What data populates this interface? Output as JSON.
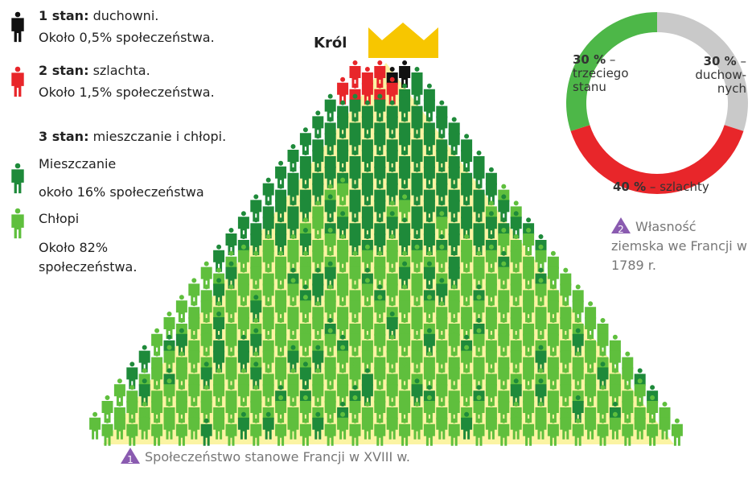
{
  "legend": {
    "estate1": {
      "label": "1 stan:",
      "text": "duchowni.",
      "share": "Około 0,5% społeczeństwa."
    },
    "estate2": {
      "label": "2 stan:",
      "text": "szlachta.",
      "share": "Około 1,5% społeczeństwa."
    },
    "estate3": {
      "label": "3 stan:",
      "text": "mieszczanie i chłopi.",
      "burghers": "Mieszczanie",
      "burghers_share": "około 16% społeczeństwa",
      "peasants": "Chłopi",
      "peasants_share": "Około 82% społeczeństwa."
    }
  },
  "pyramid": {
    "king": "Król",
    "caption": {
      "number": "1",
      "text": "Społeczeństwo stanowe Francji w XVIII w."
    }
  },
  "chart_data": {
    "type": "pie",
    "donut": true,
    "categories": [
      "– duchow- nych",
      "– szlachty",
      "– trzeciego stanu"
    ],
    "values": [
      30,
      40,
      30
    ],
    "value_labels": [
      "30 %",
      "40 %",
      "30 %"
    ],
    "colors": [
      "#c9c9c9",
      "#e8262a",
      "#4db748"
    ],
    "caption": {
      "number": "2",
      "text": "Własność ziemska we Francji w 1789 r."
    }
  }
}
